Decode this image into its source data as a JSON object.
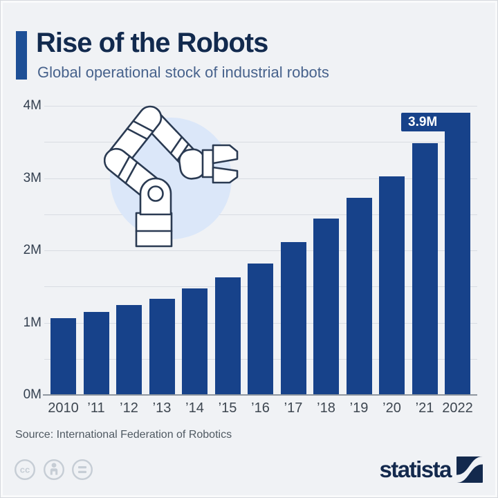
{
  "header": {
    "title": "Rise of the Robots",
    "subtitle": "Global operational stock of industrial robots"
  },
  "chart_data": {
    "type": "bar",
    "title": "Rise of the Robots",
    "subtitle": "Global operational stock of industrial robots",
    "categories": [
      "2010",
      "’11",
      "’12",
      "’13",
      "’14",
      "’15",
      "’16",
      "’17",
      "’18",
      "’19",
      "’20",
      "’21",
      "2022"
    ],
    "values": [
      1.06,
      1.15,
      1.24,
      1.33,
      1.47,
      1.63,
      1.82,
      2.12,
      2.44,
      2.73,
      3.02,
      3.48,
      3.9
    ],
    "unit": "millions of robots",
    "ylim": [
      0,
      4
    ],
    "ytick_labels": [
      "0M",
      "1M",
      "2M",
      "3M",
      "4M"
    ],
    "gridline_step": 0.5,
    "grid": true,
    "annotation": {
      "label": "3.9M",
      "value": 3.9,
      "category": "2022"
    },
    "bar_color": "#17428a"
  },
  "footer": {
    "source": "Source: International Federation of Robotics",
    "brand": "statista"
  },
  "icons": {
    "robot": "robot-arm-icon",
    "license": [
      "cc-icon",
      "attribution-person-icon",
      "no-derivatives-equals-icon"
    ],
    "brand_mark": "statista-swoosh-logo"
  },
  "colors": {
    "background": "#f0f2f5",
    "bar": "#17428a",
    "accent_bar": "#1d4f96",
    "title": "#122a4e",
    "subtitle": "#47628c",
    "gridline": "#d8dce2",
    "axis": "#8e969f",
    "annotation_text": "#ffffff",
    "robot_circle": "#dbe7f9",
    "robot_outline": "#2a3a52",
    "statista_navy": "#13294d",
    "cc_gray": "#c6cdd5"
  }
}
